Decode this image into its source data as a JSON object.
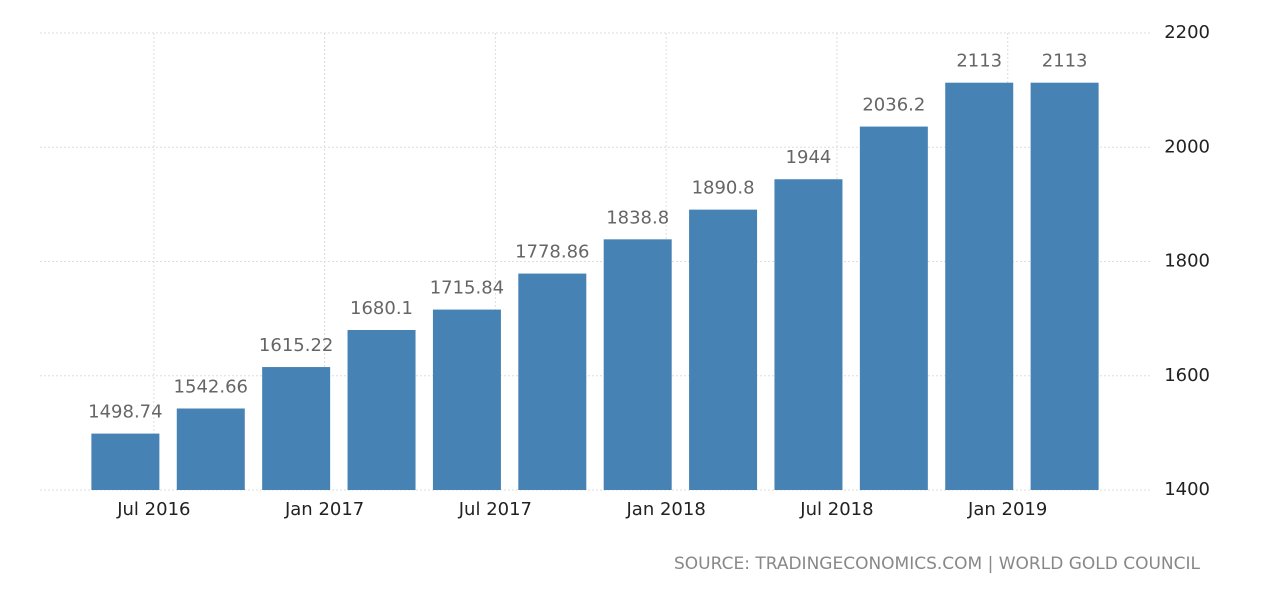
{
  "chart_data": {
    "type": "bar",
    "x": [
      "2016-06",
      "2016-09",
      "2016-12",
      "2017-03",
      "2017-06",
      "2017-09",
      "2017-12",
      "2018-03",
      "2018-06",
      "2018-09",
      "2018-12",
      "2019-03"
    ],
    "values": [
      1498.74,
      1542.66,
      1615.22,
      1680.1,
      1715.84,
      1778.86,
      1838.8,
      1890.8,
      1944,
      2036.2,
      2113,
      2113
    ],
    "color": "#4682b4",
    "xlim": [
      "2016-03",
      "2019-06"
    ],
    "xticks": [
      {
        "value": "2016-07",
        "label": "Jul 2016"
      },
      {
        "value": "2017-01",
        "label": "Jan 2017"
      },
      {
        "value": "2017-07",
        "label": "Jul 2017"
      },
      {
        "value": "2018-01",
        "label": "Jan 2018"
      },
      {
        "value": "2018-07",
        "label": "Jul 2018"
      },
      {
        "value": "2019-01",
        "label": "Jan 2019"
      }
    ],
    "ylim": [
      1400,
      2200
    ],
    "yticks": [
      1400,
      1600,
      1800,
      2000,
      2200
    ],
    "grid": true,
    "source": "SOURCE: TRADINGECONOMICS.COM | WORLD GOLD COUNCIL"
  }
}
